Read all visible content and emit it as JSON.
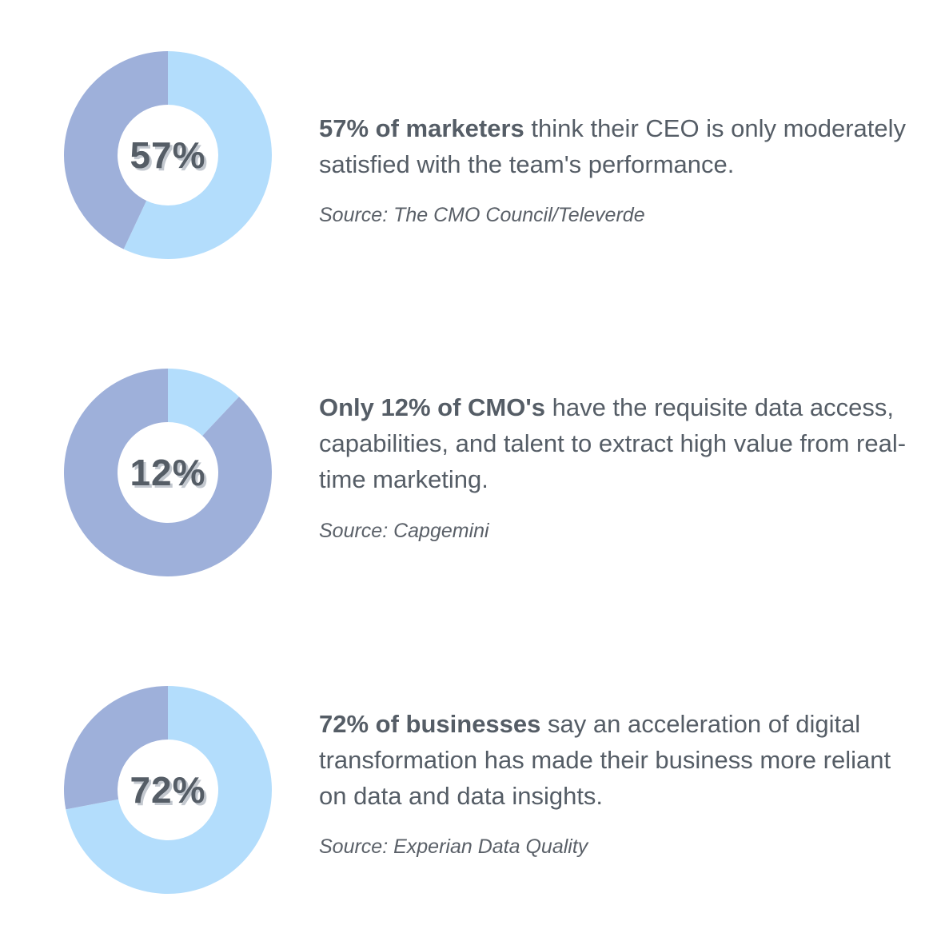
{
  "colors": {
    "highlight": "#b3ddfc",
    "remainder": "#9eb0da",
    "text": "#555d66"
  },
  "chart_data": [
    {
      "type": "pie",
      "donut": true,
      "label": "57%",
      "slices": [
        {
          "value": 57,
          "color": "#b3ddfc"
        },
        {
          "value": 43,
          "color": "#9eb0da"
        }
      ]
    },
    {
      "type": "pie",
      "donut": true,
      "label": "12%",
      "slices": [
        {
          "value": 12,
          "color": "#b3ddfc"
        },
        {
          "value": 88,
          "color": "#9eb0da"
        }
      ]
    },
    {
      "type": "pie",
      "donut": true,
      "label": "72%",
      "slices": [
        {
          "value": 72,
          "color": "#b3ddfc"
        },
        {
          "value": 28,
          "color": "#9eb0da"
        }
      ]
    }
  ],
  "stats": [
    {
      "lead": "57% of marketers",
      "rest": " think their CEO is only moderately satisfied with the team's performance.",
      "source": "Source: The CMO Council/Televerde"
    },
    {
      "lead": "Only 12% of CMO's",
      "rest": " have the requisite data access, capabilities, and talent to extract high value from real-time marketing.",
      "source": "Source: Capgemini"
    },
    {
      "lead": "72% of businesses",
      "rest": " say an acceleration of digital transformation has made their business more reliant on data and data insights.",
      "source": "Source: Experian Data Quality"
    }
  ]
}
